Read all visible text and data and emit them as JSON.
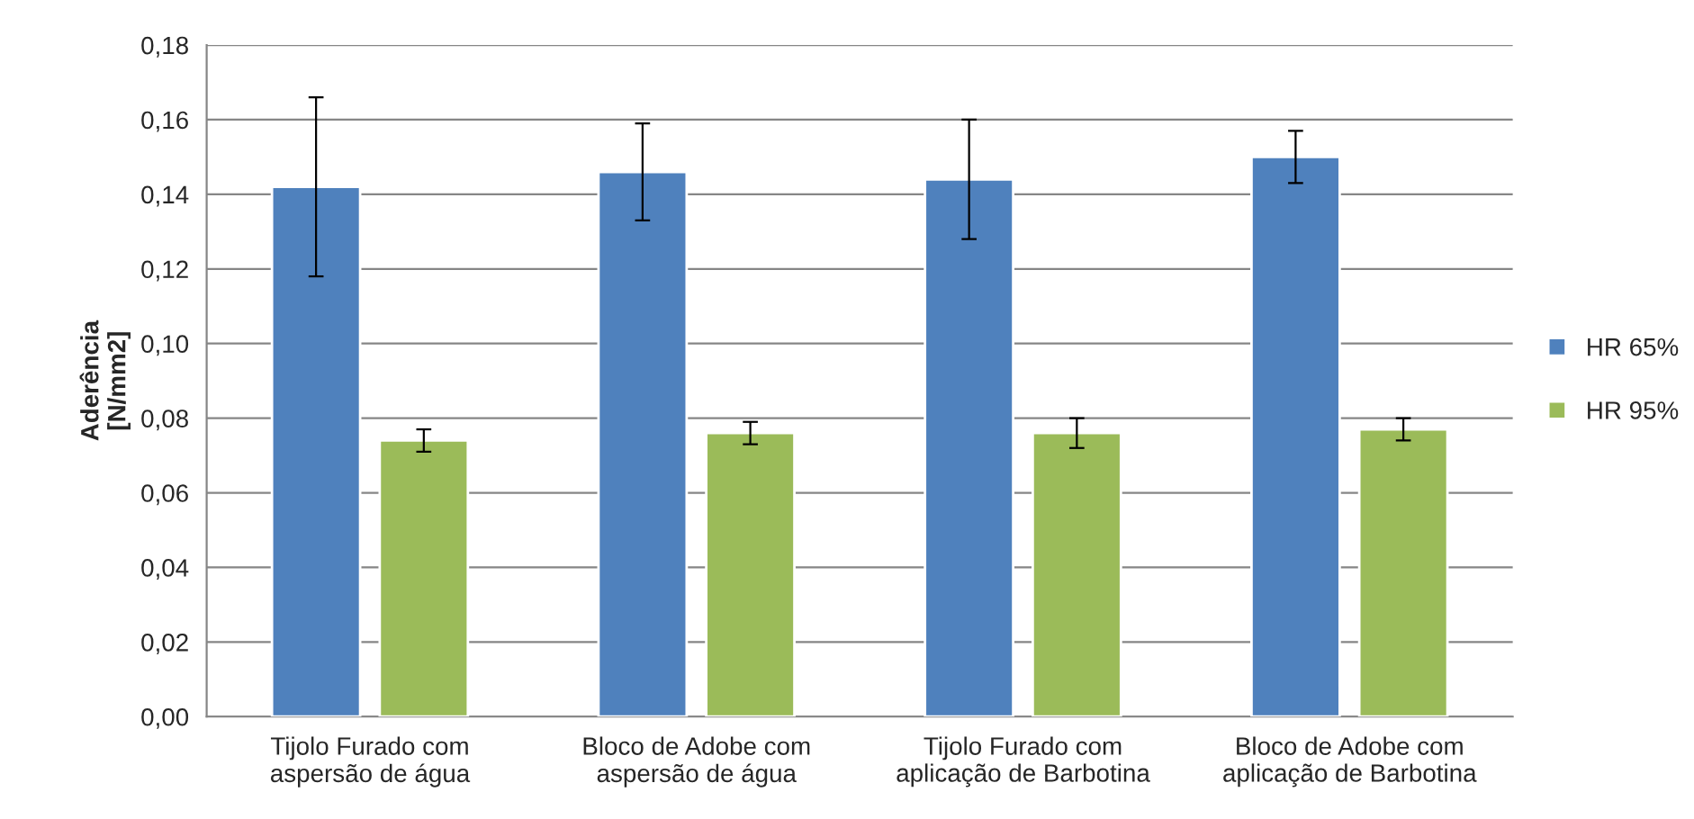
{
  "chart_data": {
    "type": "bar",
    "ylabel": "Aderência\n[N/mm2]",
    "categories": [
      "Tijolo Furado com\naspersão de água",
      "Bloco de Adobe com\naspersão de água",
      "Tijolo Furado com\naplicação de Barbotina",
      "Bloco de Adobe com\naplicação de Barbotina"
    ],
    "series": [
      {
        "name": "HR 65%",
        "color": "#4f81bd",
        "values": [
          0.142,
          0.146,
          0.144,
          0.15
        ],
        "errors": [
          0.024,
          0.013,
          0.016,
          0.007
        ]
      },
      {
        "name": "HR 95%",
        "color": "#9bbb59",
        "values": [
          0.074,
          0.076,
          0.076,
          0.077
        ],
        "errors": [
          0.003,
          0.003,
          0.004,
          0.003
        ]
      }
    ],
    "ylim": [
      0,
      0.18
    ],
    "yticks": [
      {
        "value": 0,
        "label": "0,00"
      },
      {
        "value": 0.02,
        "label": "0,02"
      },
      {
        "value": 0.04,
        "label": "0,04"
      },
      {
        "value": 0.06,
        "label": "0,06"
      },
      {
        "value": 0.08,
        "label": "0,08"
      },
      {
        "value": 0.1,
        "label": "0,10"
      },
      {
        "value": 0.12,
        "label": "0,12"
      },
      {
        "value": 0.14,
        "label": "0,14"
      },
      {
        "value": 0.16,
        "label": "0,16"
      },
      {
        "value": 0.18,
        "label": "0,18"
      }
    ],
    "grid": "y",
    "legend": "right"
  }
}
